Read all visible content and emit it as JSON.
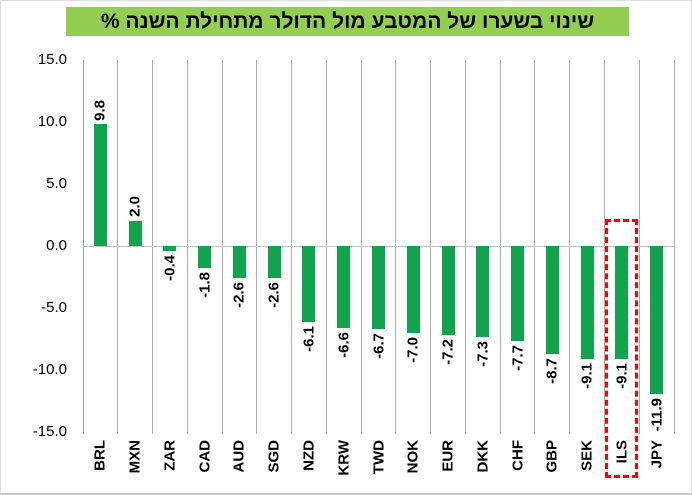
{
  "chart_data": {
    "type": "bar",
    "title": "שינוי בשערו של המטבע מול הדולר מתחילת השנה %",
    "categories": [
      "BRL",
      "MXN",
      "ZAR",
      "CAD",
      "AUD",
      "SGD",
      "NZD",
      "KRW",
      "TWD",
      "NOK",
      "EUR",
      "DKK",
      "CHF",
      "GBP",
      "SEK",
      "ILS",
      "JPY"
    ],
    "values": [
      9.8,
      2.0,
      -0.4,
      -1.8,
      -2.6,
      -2.6,
      -6.1,
      -6.6,
      -6.7,
      -7.0,
      -7.2,
      -7.3,
      -7.7,
      -8.7,
      -9.1,
      -9.1,
      -11.9
    ],
    "value_labels": [
      "9.8",
      "2.0",
      "-0.4",
      "-1.8",
      "-2.6",
      "-2.6",
      "-6.1",
      "-6.6",
      "-6.7",
      "-7.0",
      "-7.2",
      "-7.3",
      "-7.7",
      "-8.7",
      "-9.1",
      "-9.1",
      "-11.9"
    ],
    "xlabel": "",
    "ylabel": "",
    "ylim": [
      -15.0,
      15.0
    ],
    "y_axis_ticks": [
      "15.0",
      "10.0",
      "5.0",
      "0.0",
      "-5.0",
      "-10.0",
      "-15.0"
    ],
    "grid": "vertical-category-gridlines",
    "legend": "none",
    "highlight": {
      "category": "ILS",
      "style": "red-dashed-box"
    }
  },
  "colors": {
    "bar_green": "#12A34F",
    "title_background": "#92CE50",
    "gridline_gray": "#ABABAB",
    "axis_gray": "#9A9A9A",
    "zero_line_gray": "#BFBFBF",
    "highlight_red": "#FF0000",
    "text_black": "#000000"
  }
}
